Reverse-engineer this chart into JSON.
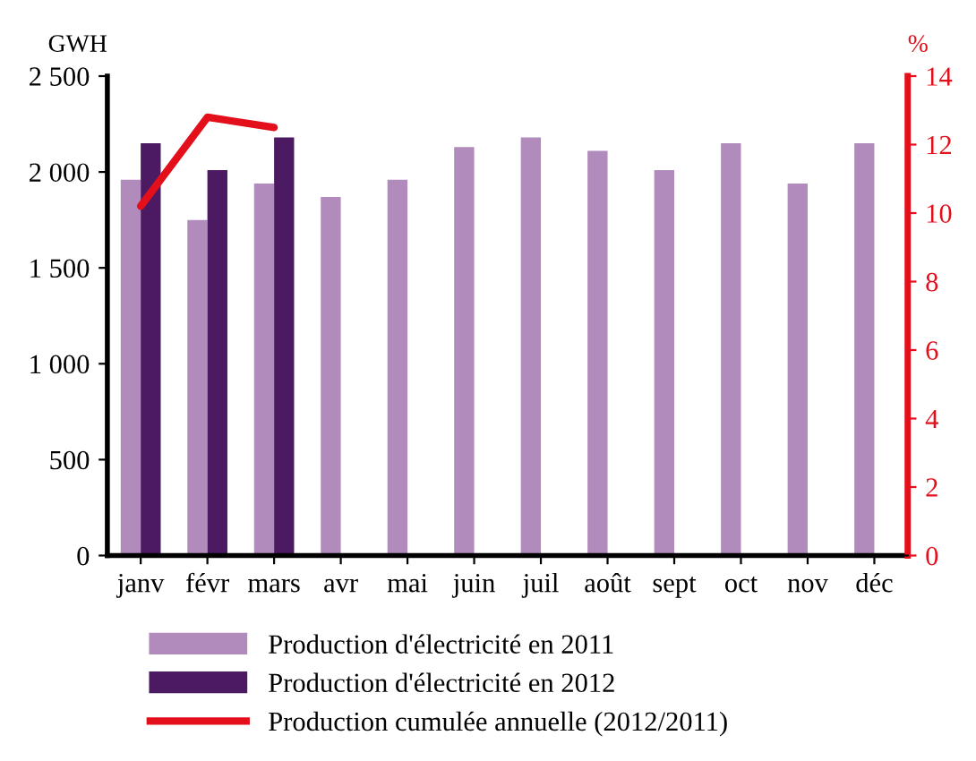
{
  "chart_data": {
    "type": "bar",
    "ylabel": "GWH",
    "y2label": "%",
    "categories": [
      "janv",
      "févr",
      "mars",
      "avr",
      "mai",
      "juin",
      "juil",
      "août",
      "sept",
      "oct",
      "nov",
      "déc"
    ],
    "series": [
      {
        "name": "Production d'électricité en 2011",
        "color": "#b08bbb",
        "values": [
          1960,
          1750,
          1940,
          1870,
          1960,
          2130,
          2180,
          2110,
          2010,
          2150,
          1940,
          2150
        ]
      },
      {
        "name": "Production d'électricité en 2012",
        "color": "#4b1a63",
        "values": [
          2150,
          2010,
          2180,
          null,
          null,
          null,
          null,
          null,
          null,
          null,
          null,
          null
        ]
      },
      {
        "name": "Production cumulée annuelle (2012/2011)",
        "type": "line",
        "axis": "y2",
        "color": "#e3101c",
        "values": [
          10.2,
          12.8,
          12.5,
          null,
          null,
          null,
          null,
          null,
          null,
          null,
          null,
          null
        ]
      }
    ],
    "ylim": [
      0,
      2500
    ],
    "yticks": [
      0,
      {
        "value": 500,
        "label": "500"
      },
      {
        "value": 1000,
        "label": "1 000"
      },
      {
        "value": 1500,
        "label": "1 500"
      },
      {
        "value": 2000,
        "label": "2 000"
      },
      {
        "value": 2500,
        "label": "2 500"
      }
    ],
    "y2lim": [
      0,
      14
    ],
    "y2ticks": [
      0,
      2,
      4,
      6,
      8,
      10,
      12,
      14
    ],
    "legend": "bottom",
    "grid": false
  }
}
